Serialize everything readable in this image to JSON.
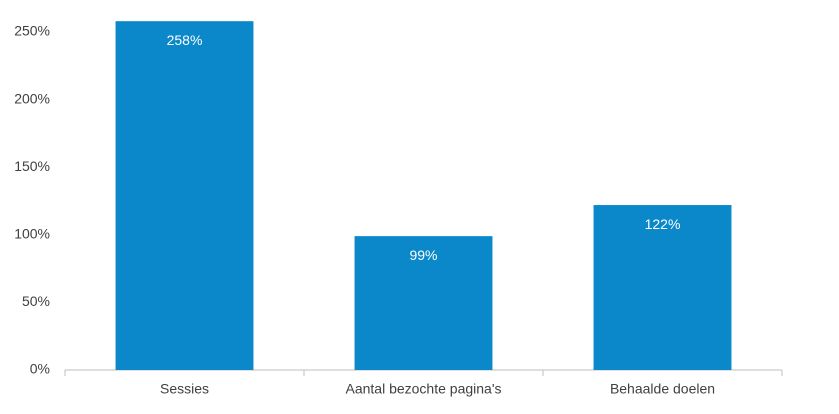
{
  "chart_data": {
    "type": "bar",
    "categories": [
      "Sessies",
      "Aantal bezochte pagina's",
      "Behaalde doelen"
    ],
    "values": [
      258,
      99,
      122
    ],
    "value_labels": [
      "258%",
      "99%",
      "122%"
    ],
    "color": "#0a88c9",
    "ylim": [
      0,
      250
    ],
    "yticks": [
      {
        "value": 0,
        "label": "0%"
      },
      {
        "value": 50,
        "label": "50%"
      },
      {
        "value": 100,
        "label": "100%"
      },
      {
        "value": 150,
        "label": "150%"
      },
      {
        "value": 200,
        "label": "200%"
      },
      {
        "value": 250,
        "label": "250%"
      }
    ],
    "grid": false
  }
}
